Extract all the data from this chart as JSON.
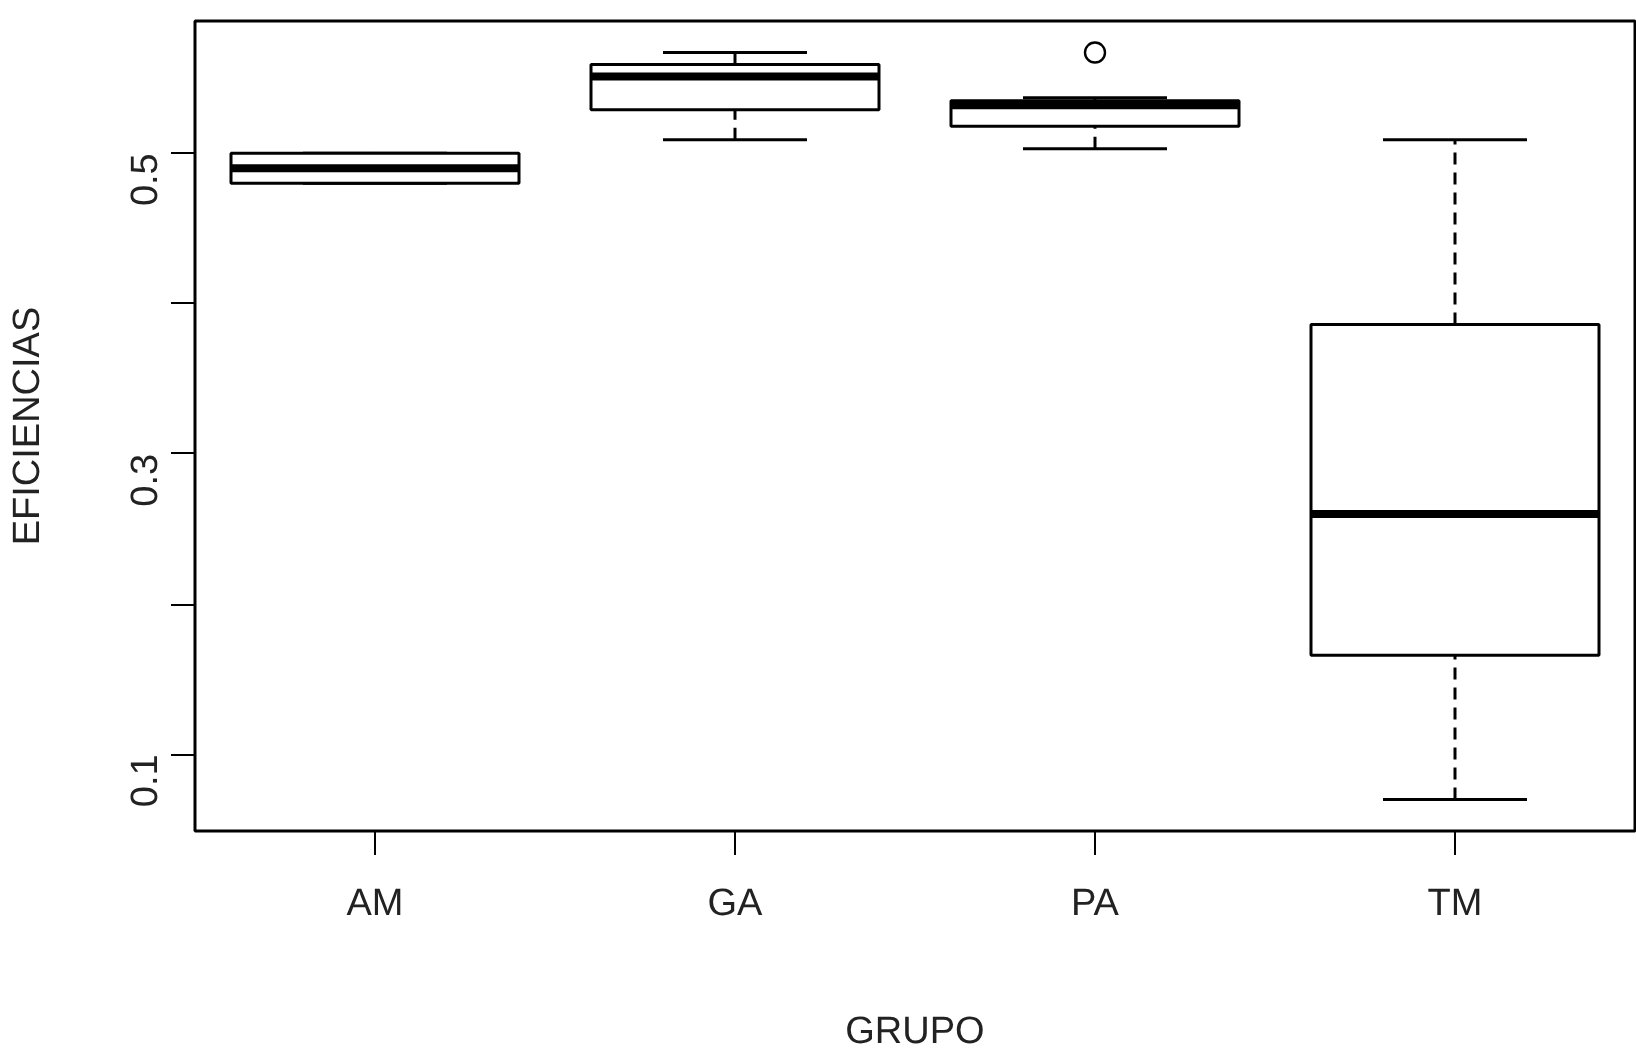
{
  "chart_data": {
    "type": "box",
    "xlabel": "GRUPO",
    "ylabel": "EFICIENCIAS",
    "categories": [
      "AM",
      "GA",
      "PA",
      "TM"
    ],
    "boxes": [
      {
        "low": 0.48,
        "q1": 0.48,
        "median": 0.49,
        "q3": 0.5,
        "high": 0.5
      },
      {
        "low": 0.509,
        "q1": 0.529,
        "median": 0.551,
        "q3": 0.559,
        "high": 0.567
      },
      {
        "low": 0.503,
        "q1": 0.518,
        "median": 0.532,
        "q3": 0.535,
        "high": 0.537,
        "outliers": [
          0.567
        ]
      },
      {
        "low": 0.07,
        "q1": 0.166,
        "median": 0.26,
        "q3": 0.386,
        "high": 0.509
      }
    ],
    "ylim": [
      0.049,
      0.588
    ],
    "yticks": [
      0.1,
      {
        "value": 0.2,
        "label": null
      },
      0.3,
      {
        "value": 0.4,
        "label": null
      },
      0.5
    ]
  }
}
